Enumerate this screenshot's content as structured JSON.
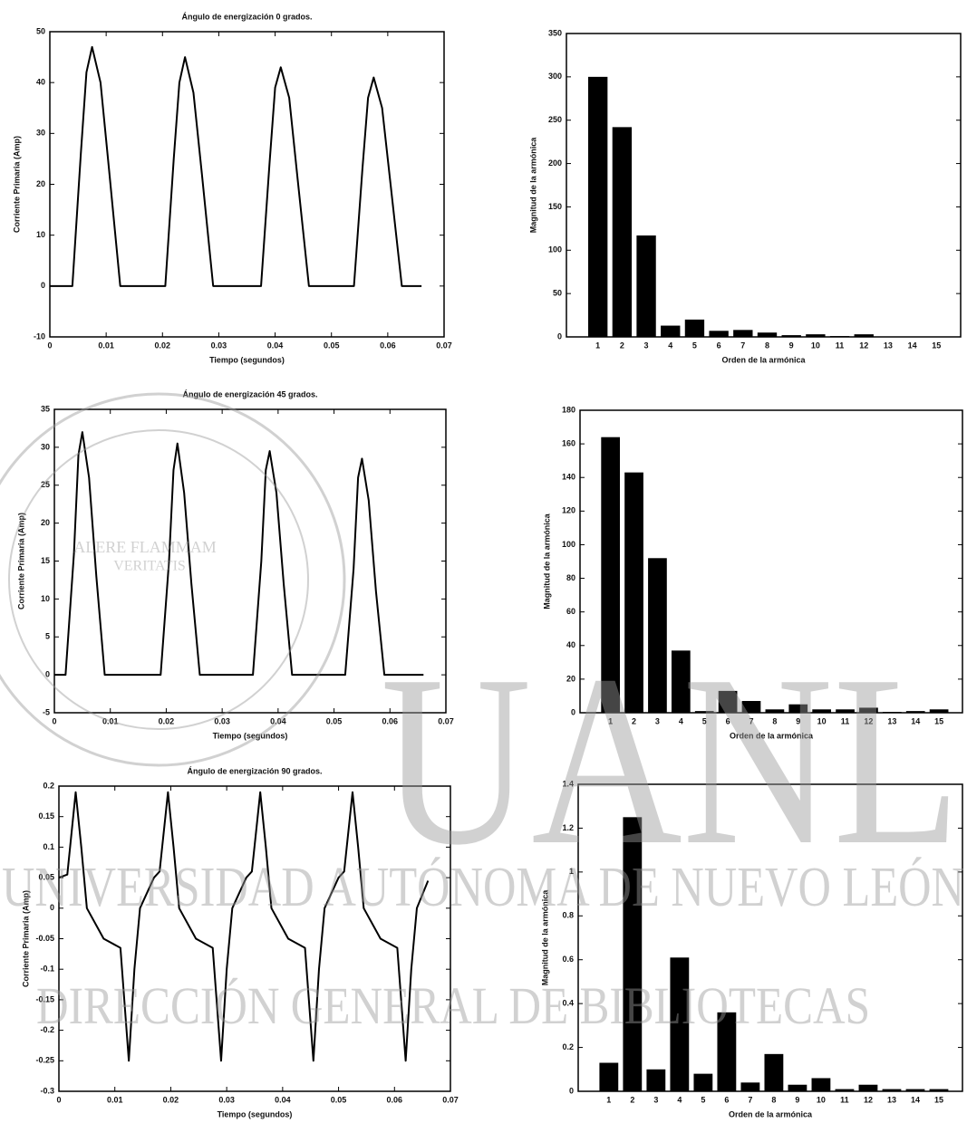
{
  "chart_data": [
    {
      "type": "line",
      "title": "Ángulo de energización 0 grados.",
      "xlabel": "Tiempo (segundos)",
      "ylabel": "Corriente Primaria (Amp)",
      "color": "#000000",
      "x": [
        0,
        0.004,
        0.0055,
        0.0065,
        0.0075,
        0.009,
        0.0105,
        0.0125,
        0.0205,
        0.022,
        0.023,
        0.024,
        0.0255,
        0.027,
        0.029,
        0.0375,
        0.039,
        0.04,
        0.041,
        0.0425,
        0.044,
        0.046,
        0.054,
        0.0555,
        0.0565,
        0.0575,
        0.059,
        0.0605,
        0.0625,
        0.066
      ],
      "values": [
        0,
        0,
        26,
        42,
        47,
        40,
        23,
        0,
        0,
        25,
        40,
        45,
        38,
        22,
        0,
        0,
        24,
        39,
        43,
        37,
        21,
        0,
        0,
        23,
        37,
        41,
        35,
        20,
        0,
        0
      ],
      "xlim": [
        0,
        0.07
      ],
      "xticks": [
        0,
        0.01,
        0.02,
        0.03,
        0.04,
        0.05,
        0.06,
        0.07
      ],
      "ylim": [
        -10,
        50
      ],
      "yticks": [
        -10,
        0,
        10,
        20,
        30,
        40,
        50
      ]
    },
    {
      "type": "bar",
      "xlabel": "Orden de la armónica",
      "ylabel": "Magnitud de la armónica",
      "color": "#000000",
      "categories": [
        "1",
        "2",
        "3",
        "4",
        "5",
        "6",
        "7",
        "8",
        "9",
        "10",
        "11",
        "12",
        "13",
        "14",
        "15"
      ],
      "values": [
        300,
        242,
        117,
        13,
        20,
        7,
        8,
        5,
        2,
        3,
        1,
        3,
        0.5,
        0.5,
        0.5
      ],
      "ylim": [
        0,
        350
      ],
      "yticks": [
        0,
        50,
        100,
        150,
        200,
        250,
        300,
        350
      ]
    },
    {
      "type": "line",
      "title": "Ángulo de energización 45 grados.",
      "xlabel": "Tiempo (segundos)",
      "ylabel": "Corriente Primaria (Amp)",
      "color": "#000000",
      "x": [
        0,
        0.002,
        0.0035,
        0.0043,
        0.005,
        0.0062,
        0.0075,
        0.009,
        0.019,
        0.0205,
        0.0213,
        0.022,
        0.0232,
        0.0245,
        0.026,
        0.0355,
        0.037,
        0.0378,
        0.0385,
        0.0397,
        0.041,
        0.0425,
        0.052,
        0.0535,
        0.0543,
        0.055,
        0.0562,
        0.0575,
        0.059,
        0.066
      ],
      "values": [
        0,
        0,
        16,
        29,
        32,
        26,
        13,
        0,
        0,
        15,
        27,
        30.5,
        24,
        12,
        0,
        0,
        15,
        27,
        29.5,
        24,
        12,
        0,
        0,
        14,
        26,
        28.5,
        23,
        11,
        0,
        0
      ],
      "xlim": [
        0,
        0.07
      ],
      "xticks": [
        0,
        0.01,
        0.02,
        0.03,
        0.04,
        0.05,
        0.06,
        0.07
      ],
      "ylim": [
        -5,
        35
      ],
      "yticks": [
        -5,
        0,
        5,
        10,
        15,
        20,
        25,
        30,
        35
      ]
    },
    {
      "type": "bar",
      "xlabel": "Orden de la armónica",
      "ylabel": "Magnitud de la armónica",
      "color": "#000000",
      "categories": [
        "1",
        "2",
        "3",
        "4",
        "5",
        "6",
        "7",
        "8",
        "9",
        "10",
        "11",
        "12",
        "13",
        "14",
        "15"
      ],
      "values": [
        164,
        143,
        92,
        37,
        1,
        13,
        7,
        2,
        5,
        2,
        2,
        3,
        0.5,
        1,
        2
      ],
      "ylim": [
        0,
        180
      ],
      "yticks": [
        0,
        20,
        40,
        60,
        80,
        100,
        120,
        140,
        160,
        180
      ]
    },
    {
      "type": "line",
      "title": "Ángulo de energización 90 grados.",
      "xlabel": "Tiempo (segundos)",
      "ylabel": "Corriente Primaria (Amp)",
      "color": "#000000",
      "x": [
        0,
        0.0015,
        0.003,
        0.004,
        0.005,
        0.008,
        0.011,
        0.0125,
        0.0135,
        0.0145,
        0.017,
        0.018,
        0.0195,
        0.0205,
        0.0215,
        0.0245,
        0.0275,
        0.029,
        0.03,
        0.031,
        0.0335,
        0.0345,
        0.036,
        0.037,
        0.038,
        0.041,
        0.044,
        0.0455,
        0.0465,
        0.0475,
        0.05,
        0.051,
        0.0525,
        0.0535,
        0.0545,
        0.0575,
        0.0605,
        0.062,
        0.063,
        0.064,
        0.066
      ],
      "values": [
        0.05,
        0.055,
        0.19,
        0.1,
        0,
        -0.05,
        -0.065,
        -0.25,
        -0.1,
        0,
        0.05,
        0.06,
        0.19,
        0.1,
        0,
        -0.05,
        -0.065,
        -0.25,
        -0.1,
        0,
        0.05,
        0.06,
        0.19,
        0.1,
        0,
        -0.05,
        -0.065,
        -0.25,
        -0.1,
        0,
        0.05,
        0.06,
        0.19,
        0.1,
        0,
        -0.05,
        -0.065,
        -0.25,
        -0.1,
        0,
        0.045
      ],
      "xlim": [
        0,
        0.07
      ],
      "xticks": [
        0,
        0.01,
        0.02,
        0.03,
        0.04,
        0.05,
        0.06,
        0.07
      ],
      "ylim": [
        -0.3,
        0.2
      ],
      "yticks": [
        -0.3,
        -0.25,
        -0.2,
        -0.15,
        -0.1,
        -0.05,
        0,
        0.05,
        0.1,
        0.15,
        0.2
      ]
    },
    {
      "type": "bar",
      "xlabel": "Orden de la armónica",
      "ylabel": "Magnitud de la armónica",
      "color": "#000000",
      "categories": [
        "1",
        "2",
        "3",
        "4",
        "5",
        "6",
        "7",
        "8",
        "9",
        "10",
        "11",
        "12",
        "13",
        "14",
        "15"
      ],
      "values": [
        0.13,
        1.25,
        0.1,
        0.61,
        0.08,
        0.36,
        0.04,
        0.17,
        0.03,
        0.06,
        0.01,
        0.03,
        0.01,
        0.01,
        0.01
      ],
      "ylim": [
        0,
        1.4
      ],
      "yticks": [
        0,
        0.2,
        0.4,
        0.6,
        0.8,
        1,
        1.2,
        1.4
      ]
    }
  ],
  "watermark": {
    "logo": "UANL",
    "university": "UNIVERSIDAD AUTÓNOMA DE NUEVO LEÓN",
    "library": "DIRECCIÓN GENERAL DE BIBLIOTECAS",
    "seal": [
      "ALERE FLAMMAM",
      "VERITATIS"
    ]
  }
}
